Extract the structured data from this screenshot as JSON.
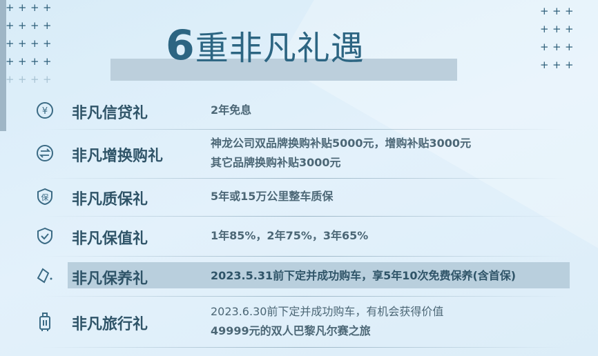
{
  "title": {
    "number": "6",
    "text": "重非凡礼遇"
  },
  "items": [
    {
      "label": "非凡信贷礼",
      "icon": "yen-circle-icon",
      "lines": [
        "2年免息"
      ]
    },
    {
      "label": "非凡增换购礼",
      "icon": "exchange-circle-icon",
      "lines": [
        "神龙公司双品牌换购补贴5000元，增购补贴3000元",
        "其它品牌换购补贴3000元"
      ]
    },
    {
      "label": "非凡质保礼",
      "icon": "shield-bao-icon",
      "lines": [
        "5年或15万公里整车质保"
      ]
    },
    {
      "label": "非凡保值礼",
      "icon": "shield-check-icon",
      "lines": [
        "1年85%，2年75%，3年65%"
      ]
    },
    {
      "label": "非凡保养礼",
      "icon": "oil-can-icon",
      "lines": [
        "2023.5.31前下定并成功购车，享5年10次免费保养(含首保)"
      ],
      "highlighted": true
    },
    {
      "label": "非凡旅行礼",
      "icon": "suitcase-icon",
      "lines": [
        "2023.6.30前下定并成功购车，有机会获得价值",
        "49999元的双人巴黎凡尔赛之旅"
      ]
    }
  ],
  "colors": {
    "accent": "#2c6582",
    "highlight": "#b9cfdd"
  }
}
